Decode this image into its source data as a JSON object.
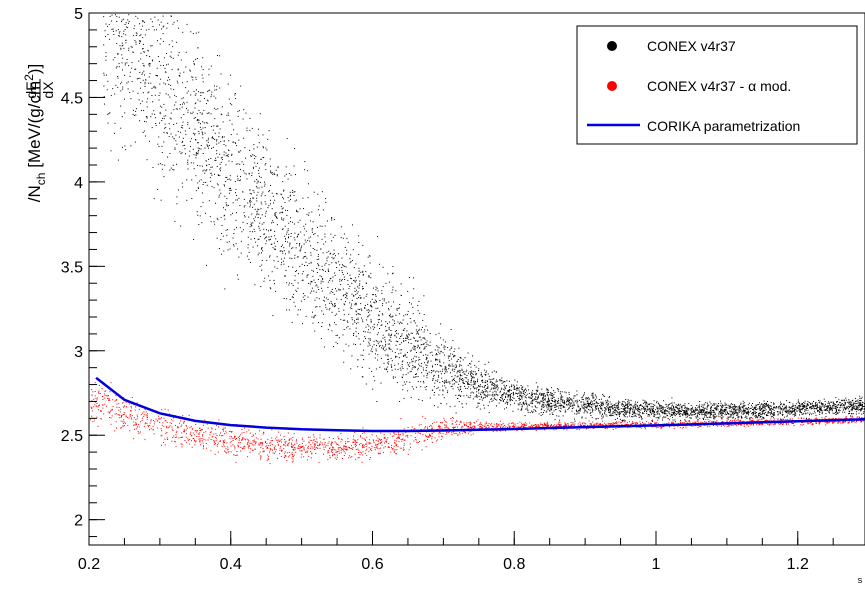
{
  "chart_data": {
    "type": "scatter",
    "title": "",
    "xlabel": "s",
    "ylabel_parts": {
      "num": "dE",
      "den": "dX",
      "rest": "/N",
      "sub": "ch",
      "unit_open": " [MeV/(g/cm",
      "sup": "2",
      "unit_close": ")]"
    },
    "xlim": [
      0.2,
      1.3
    ],
    "ylim": [
      1.85,
      5.0
    ],
    "x_ticks": [
      0.2,
      0.4,
      0.6,
      0.8,
      1.0,
      1.2
    ],
    "x_tick_labels": [
      "0.2",
      "0.4",
      "0.6",
      "0.8",
      "1",
      "1.2"
    ],
    "y_ticks": [
      2.0,
      2.5,
      3.0,
      3.5,
      4.0,
      4.5,
      5.0
    ],
    "y_tick_labels": [
      "2",
      "2.5",
      "3",
      "3.5",
      "4",
      "4.5",
      "5"
    ],
    "grid": false,
    "legend_position": "top-right",
    "series": [
      {
        "name": "CONEX v4r37",
        "kind": "points",
        "color": "#000000",
        "x": [
          0.22,
          0.26,
          0.3,
          0.35,
          0.4,
          0.45,
          0.5,
          0.55,
          0.6,
          0.65,
          0.7,
          0.75,
          0.8,
          0.85,
          0.9,
          0.95,
          1.0,
          1.05,
          1.1,
          1.15,
          1.2,
          1.25,
          1.3
        ],
        "y": [
          5.0,
          4.85,
          4.6,
          4.3,
          4.05,
          3.85,
          3.6,
          3.4,
          3.2,
          3.05,
          2.9,
          2.8,
          2.74,
          2.7,
          2.68,
          2.66,
          2.65,
          2.645,
          2.645,
          2.65,
          2.66,
          2.67,
          2.68
        ],
        "spread": [
          0.35,
          0.32,
          0.3,
          0.28,
          0.26,
          0.24,
          0.22,
          0.2,
          0.17,
          0.15,
          0.1,
          0.06,
          0.045,
          0.04,
          0.035,
          0.03,
          0.025,
          0.025,
          0.025,
          0.025,
          0.025,
          0.025,
          0.025
        ]
      },
      {
        "name": "CONEX v4r37 - α mod.",
        "kind": "points",
        "color": "#ff0000",
        "x": [
          0.2,
          0.25,
          0.3,
          0.35,
          0.4,
          0.45,
          0.5,
          0.55,
          0.6,
          0.65,
          0.7,
          0.75,
          0.8,
          0.9,
          1.0,
          1.1,
          1.2,
          1.3
        ],
        "y": [
          2.72,
          2.63,
          2.56,
          2.5,
          2.46,
          2.44,
          2.43,
          2.43,
          2.45,
          2.49,
          2.54,
          2.55,
          2.555,
          2.56,
          2.565,
          2.575,
          2.585,
          2.595
        ],
        "spread": [
          0.06,
          0.06,
          0.05,
          0.05,
          0.045,
          0.04,
          0.035,
          0.035,
          0.04,
          0.05,
          0.03,
          0.015,
          0.012,
          0.01,
          0.01,
          0.01,
          0.01,
          0.01
        ]
      },
      {
        "name": "CORIKA parametrization",
        "kind": "line",
        "color": "#0000dd",
        "x": [
          0.21,
          0.25,
          0.3,
          0.35,
          0.4,
          0.45,
          0.5,
          0.55,
          0.6,
          0.65,
          0.7,
          0.75,
          0.8,
          0.85,
          0.9,
          1.0,
          1.1,
          1.2,
          1.3
        ],
        "y": [
          2.84,
          2.71,
          2.63,
          2.585,
          2.56,
          2.545,
          2.535,
          2.53,
          2.525,
          2.525,
          2.528,
          2.532,
          2.537,
          2.543,
          2.548,
          2.558,
          2.57,
          2.583,
          2.595
        ]
      }
    ]
  }
}
